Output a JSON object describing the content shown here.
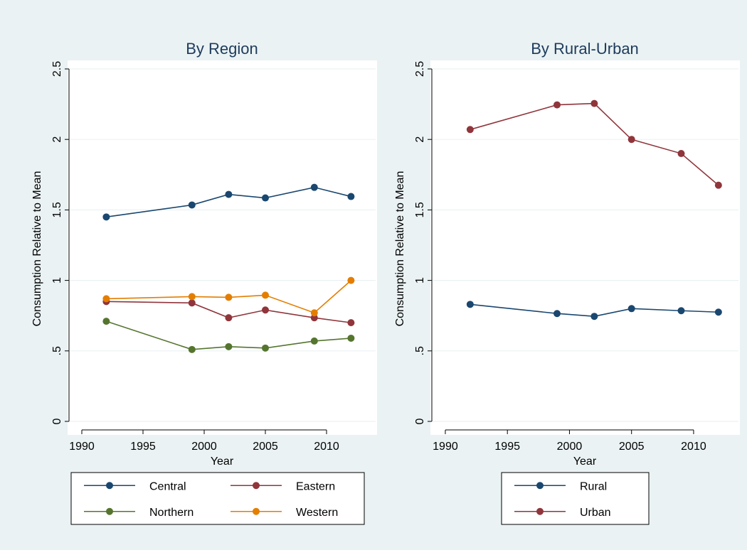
{
  "chart_data": [
    {
      "type": "line",
      "title": "By Region",
      "xlabel": "Year",
      "ylabel": "Consumption Relative to Mean",
      "x": [
        1992,
        1999,
        2002,
        2005,
        2009,
        2012
      ],
      "series": [
        {
          "name": "Central",
          "color": "#1a476f",
          "values": [
            1.45,
            1.535,
            1.61,
            1.585,
            1.66,
            1.595
          ]
        },
        {
          "name": "Eastern",
          "color": "#90353b",
          "values": [
            0.85,
            0.84,
            0.735,
            0.79,
            0.735,
            0.7
          ]
        },
        {
          "name": "Northern",
          "color": "#55752f",
          "values": [
            0.71,
            0.51,
            0.53,
            0.52,
            0.57,
            0.59
          ]
        },
        {
          "name": "Western",
          "color": "#e37e00",
          "values": [
            0.87,
            0.885,
            0.88,
            0.895,
            0.77,
            1.0
          ]
        }
      ],
      "xlim": [
        1989,
        2013
      ],
      "xticks": [
        1990,
        1995,
        2000,
        2005,
        2010
      ],
      "ylim": [
        0,
        2.5
      ],
      "yticks": [
        0,
        {
          "value": 0.5,
          "label": ".5"
        },
        1,
        1.5,
        2,
        2.5
      ],
      "grid": true,
      "legend": "bottom",
      "legend_cols": 2
    },
    {
      "type": "line",
      "title": "By Rural-Urban",
      "xlabel": "Year",
      "ylabel": "Consumption Relative to Mean",
      "x": [
        1992,
        1999,
        2002,
        2005,
        2009,
        2012
      ],
      "series": [
        {
          "name": "Rural",
          "color": "#1a476f",
          "values": [
            0.83,
            0.765,
            0.745,
            0.8,
            0.785,
            0.775
          ]
        },
        {
          "name": "Urban",
          "color": "#90353b",
          "values": [
            2.07,
            2.245,
            2.255,
            2.0,
            1.9,
            1.675
          ]
        }
      ],
      "xlim": [
        1989,
        2013
      ],
      "xticks": [
        1990,
        1995,
        2000,
        2005,
        2010
      ],
      "ylim": [
        0,
        2.5
      ],
      "yticks": [
        0,
        {
          "value": 0.5,
          "label": ".5"
        },
        1,
        1.5,
        2,
        2.5
      ],
      "grid": true,
      "legend": "bottom",
      "legend_cols": 1
    }
  ]
}
